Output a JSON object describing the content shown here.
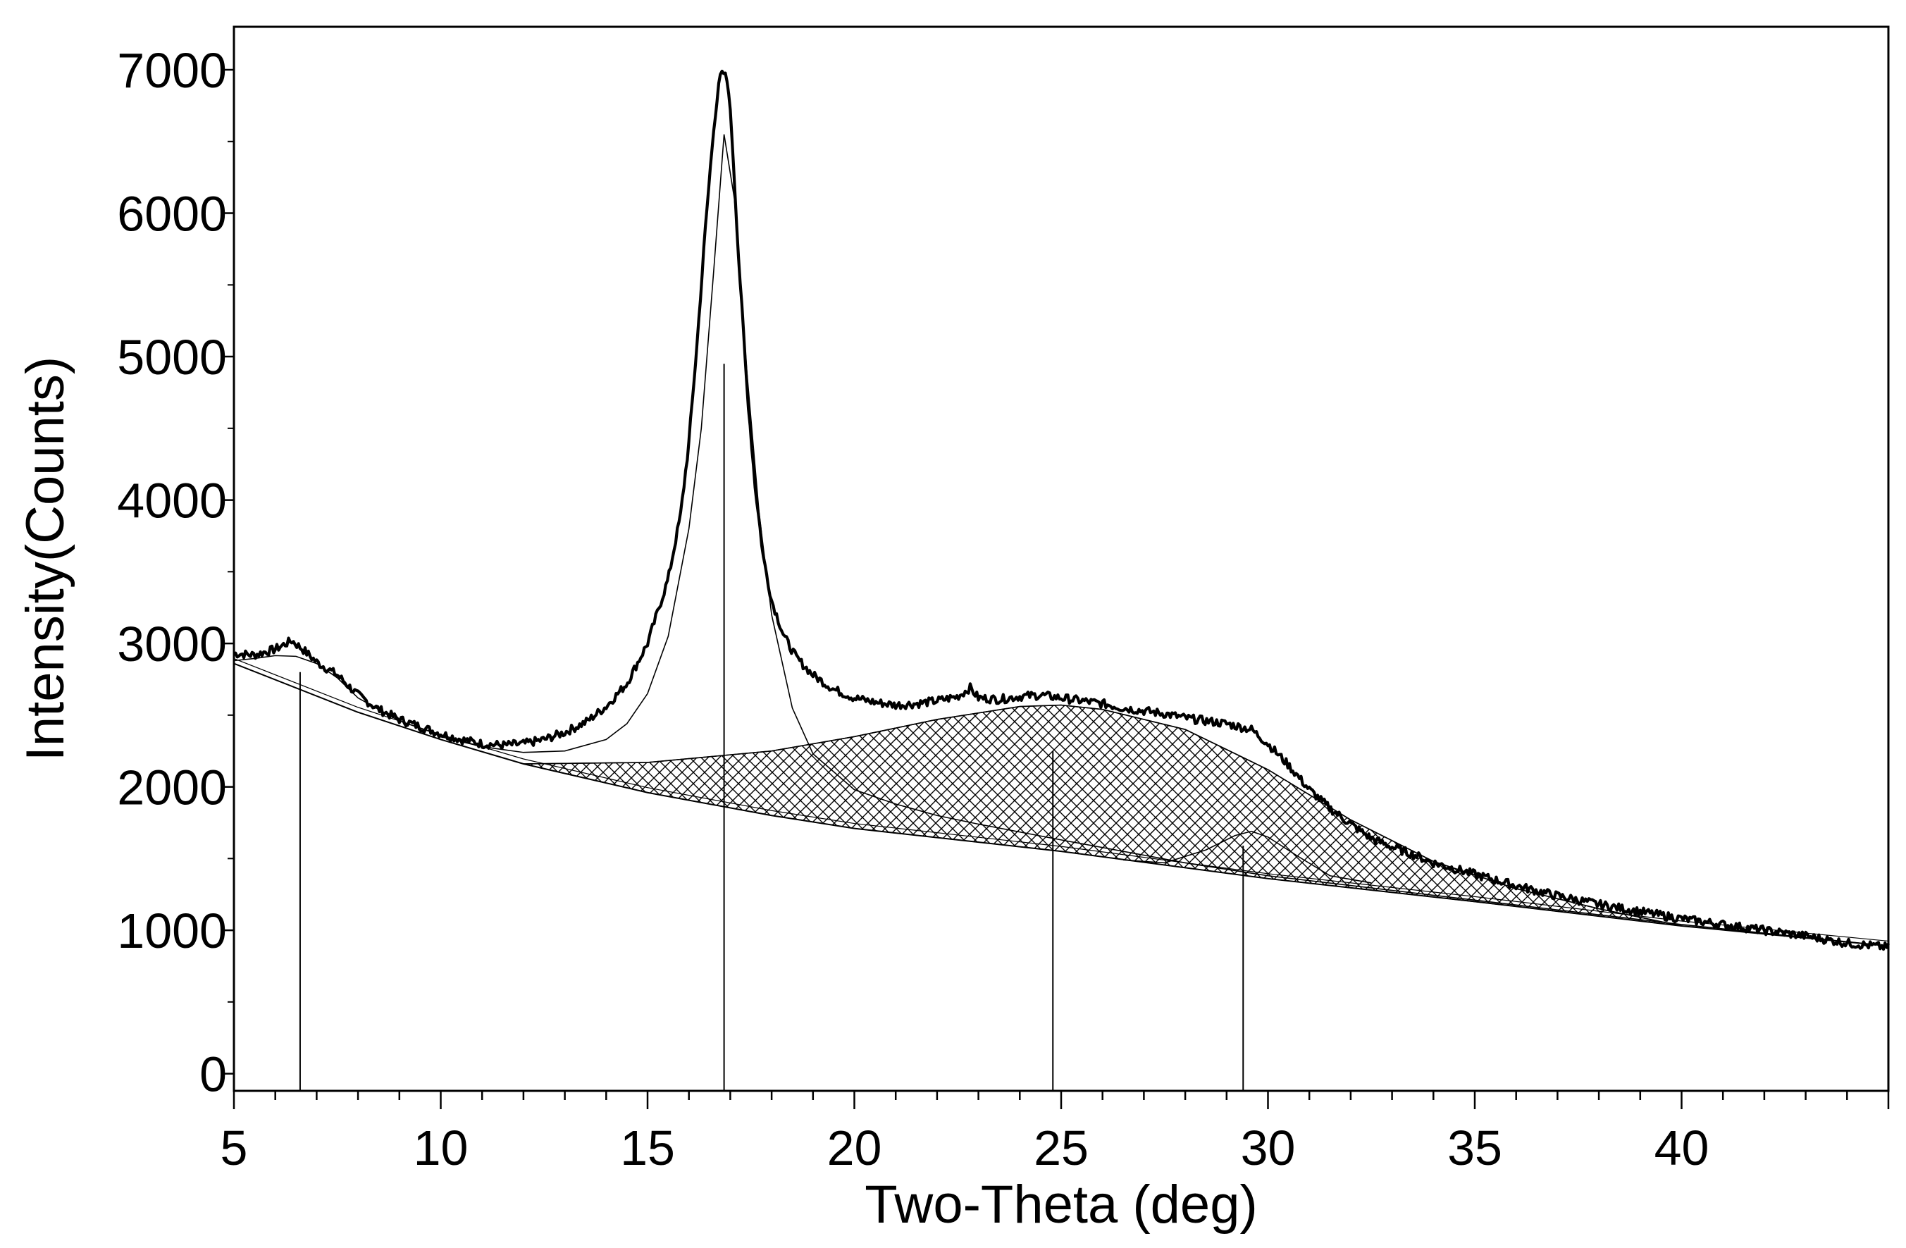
{
  "chart_data": {
    "type": "line",
    "title": "",
    "xlabel": "Two-Theta (deg)",
    "ylabel": "Intensity(Counts)",
    "xlim": [
      5,
      45
    ],
    "ylim": [
      -120,
      7300
    ],
    "xticks": [
      5,
      10,
      15,
      20,
      25,
      30,
      35,
      40
    ],
    "yticks": [
      0,
      1000,
      2000,
      3000,
      4000,
      5000,
      6000,
      7000
    ],
    "grid": false,
    "legend": "none",
    "colors": {
      "line": "#000000",
      "hatch": "#000000",
      "background": "#ffffff"
    },
    "baseline": {
      "x": [
        5,
        8,
        10,
        12,
        15,
        18,
        20,
        25,
        30,
        35,
        40,
        45
      ],
      "y": [
        2860,
        2520,
        2330,
        2160,
        1960,
        1800,
        1710,
        1550,
        1360,
        1200,
        1030,
        890
      ]
    },
    "observed": {
      "x": [
        5.0,
        5.5,
        6.0,
        6.4,
        6.7,
        7.0,
        7.5,
        8.0,
        8.5,
        9.0,
        9.5,
        10.0,
        10.5,
        11.0,
        11.5,
        12.0,
        12.5,
        13.0,
        13.5,
        14.0,
        14.5,
        15.0,
        15.5,
        15.8,
        16.0,
        16.2,
        16.4,
        16.6,
        16.75,
        16.85,
        16.95,
        17.05,
        17.2,
        17.4,
        17.6,
        17.8,
        18.0,
        18.3,
        18.6,
        19.0,
        19.5,
        20.0,
        20.5,
        21.0,
        21.5,
        22.0,
        22.5,
        22.8,
        23.0,
        23.5,
        24.0,
        24.5,
        25.0,
        25.5,
        26.0,
        26.5,
        27.0,
        27.5,
        28.0,
        28.5,
        29.0,
        29.3,
        29.6,
        30.0,
        30.5,
        31.0,
        31.5,
        32.0,
        32.5,
        33.0,
        33.5,
        34.0,
        35.0,
        36.0,
        37.0,
        38.0,
        39.0,
        40.0,
        41.0,
        42.0,
        43.0,
        44.0,
        45.0
      ],
      "y": [
        2930,
        2920,
        2960,
        3020,
        2950,
        2870,
        2780,
        2640,
        2540,
        2470,
        2420,
        2370,
        2330,
        2300,
        2290,
        2300,
        2330,
        2380,
        2450,
        2560,
        2720,
        3000,
        3450,
        3900,
        4400,
        5100,
        5900,
        6600,
        6950,
        6980,
        6900,
        6500,
        5700,
        4800,
        4100,
        3600,
        3300,
        3050,
        2900,
        2780,
        2680,
        2620,
        2590,
        2570,
        2580,
        2600,
        2630,
        2690,
        2620,
        2610,
        2630,
        2640,
        2620,
        2600,
        2580,
        2550,
        2530,
        2510,
        2480,
        2460,
        2440,
        2420,
        2400,
        2300,
        2150,
        1980,
        1850,
        1740,
        1640,
        1580,
        1530,
        1470,
        1390,
        1310,
        1240,
        1180,
        1130,
        1080,
        1040,
        1000,
        960,
        910,
        880
      ]
    },
    "fitted_peaks": [
      {
        "x": [
          5,
          5.5,
          6.0,
          6.5,
          7.0,
          7.5,
          8.0,
          9.0,
          10.0
        ],
        "y": [
          2880,
          2895,
          2915,
          2910,
          2860,
          2760,
          2620,
          2460,
          2360
        ]
      },
      {
        "x": [
          10,
          11,
          12,
          13,
          14,
          14.5,
          15,
          15.5,
          16,
          16.3,
          16.6,
          16.85,
          17.1,
          17.4,
          17.7,
          18,
          18.5,
          19,
          20,
          21,
          22,
          23,
          25,
          28,
          30,
          35,
          40,
          45
        ],
        "y": [
          2350,
          2280,
          2240,
          2250,
          2330,
          2440,
          2650,
          3050,
          3800,
          4500,
          5600,
          6550,
          6100,
          4900,
          3900,
          3200,
          2550,
          2230,
          1980,
          1880,
          1800,
          1740,
          1630,
          1470,
          1380,
          1210,
          1040,
          890
        ]
      },
      {
        "x": [
          12,
          15,
          18,
          20,
          22,
          24,
          25,
          26,
          28,
          30,
          32,
          34,
          36,
          38,
          40
        ],
        "y": [
          2160,
          2170,
          2250,
          2350,
          2470,
          2560,
          2570,
          2540,
          2400,
          2120,
          1770,
          1480,
          1290,
          1150,
          1030
        ]
      },
      {
        "x": [
          26.5,
          27.5,
          28.5,
          29.2,
          29.6,
          30.0,
          30.7,
          31.5,
          32.5
        ],
        "y": [
          1490,
          1470,
          1560,
          1660,
          1690,
          1650,
          1520,
          1380,
          1330
        ]
      }
    ],
    "peak_markers": [
      {
        "x": 6.6,
        "y": 2800
      },
      {
        "x": 16.85,
        "y": 4950
      },
      {
        "x": 24.8,
        "y": 2250
      },
      {
        "x": 29.4,
        "y": 1590
      }
    ],
    "amorphous_region": {
      "x_range": [
        12,
        40
      ],
      "fill": "crosshatch"
    }
  }
}
